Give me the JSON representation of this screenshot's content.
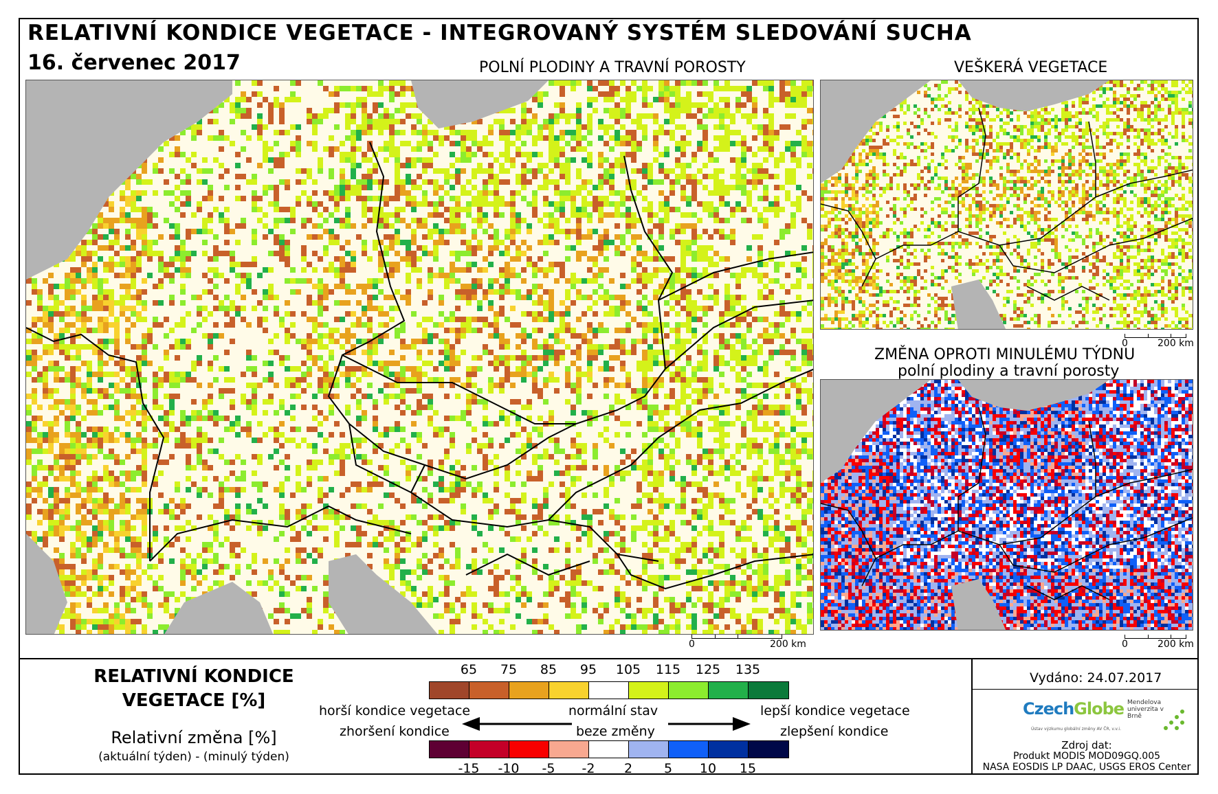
{
  "header": {
    "title": "RELATIVNÍ KONDICE VEGETACE - INTEGROVANÝ SYSTÉM SLEDOVÁNÍ SUCHA",
    "date": "16. červenec 2017"
  },
  "maps": {
    "main_label": "POLNÍ PLODINY A TRAVNÍ POROSTY",
    "all_label": "VEŠKERÁ VEGETACE",
    "change_label_1": "ZMĚNA OPROTI MINULÉMU TÝDNU",
    "change_label_2": "polní plodiny a travní porosty"
  },
  "scalebar": {
    "zero": "0",
    "end": "200 km"
  },
  "legend": {
    "title_1": "RELATIVNÍ KONDICE",
    "title_2": "VEGETACE [%]",
    "sub_1": "Relativní změna [%]",
    "sub_2": "(aktuální týden) - (minulý týden)",
    "condition_ticks": [
      "65",
      "75",
      "85",
      "95",
      "105",
      "115",
      "125",
      "135"
    ],
    "condition_colors": [
      "#a0462a",
      "#c8602a",
      "#e8a21e",
      "#f8d22e",
      "#ffffff",
      "#d4f21a",
      "#8cec2e",
      "#22b04a",
      "#0b7a3a"
    ],
    "change_ticks": [
      "-15",
      "-10",
      "-5",
      "-2",
      "2",
      "5",
      "10",
      "15"
    ],
    "change_colors": [
      "#5e0033",
      "#c40028",
      "#f80000",
      "#f8a890",
      "#ffffff",
      "#a0b4f0",
      "#1060f8",
      "#0030a0",
      "#000848"
    ],
    "worse": "horší kondice vegetace",
    "normal": "normální stav",
    "better": "lepší kondice vegetace",
    "worsening": "zhoršení kondice",
    "no_change": "beze změny",
    "improving": "zlepšení kondice"
  },
  "info": {
    "issued": "Vydáno: 24.07.2017",
    "source_1": "Zdroj dat:",
    "source_2": "Produkt MODIS MOD09GQ.005",
    "source_3": "NASA EOSDIS LP DAAC, USGS EROS Center",
    "logo_czechglobe_a": "Czech",
    "logo_czechglobe_b": "Globe",
    "logo_czechglobe_sub": "Ústav výzkumu globální změny AV ČR, v.v.i.",
    "logo_mendel": "Mendelova univerzita v Brně"
  }
}
